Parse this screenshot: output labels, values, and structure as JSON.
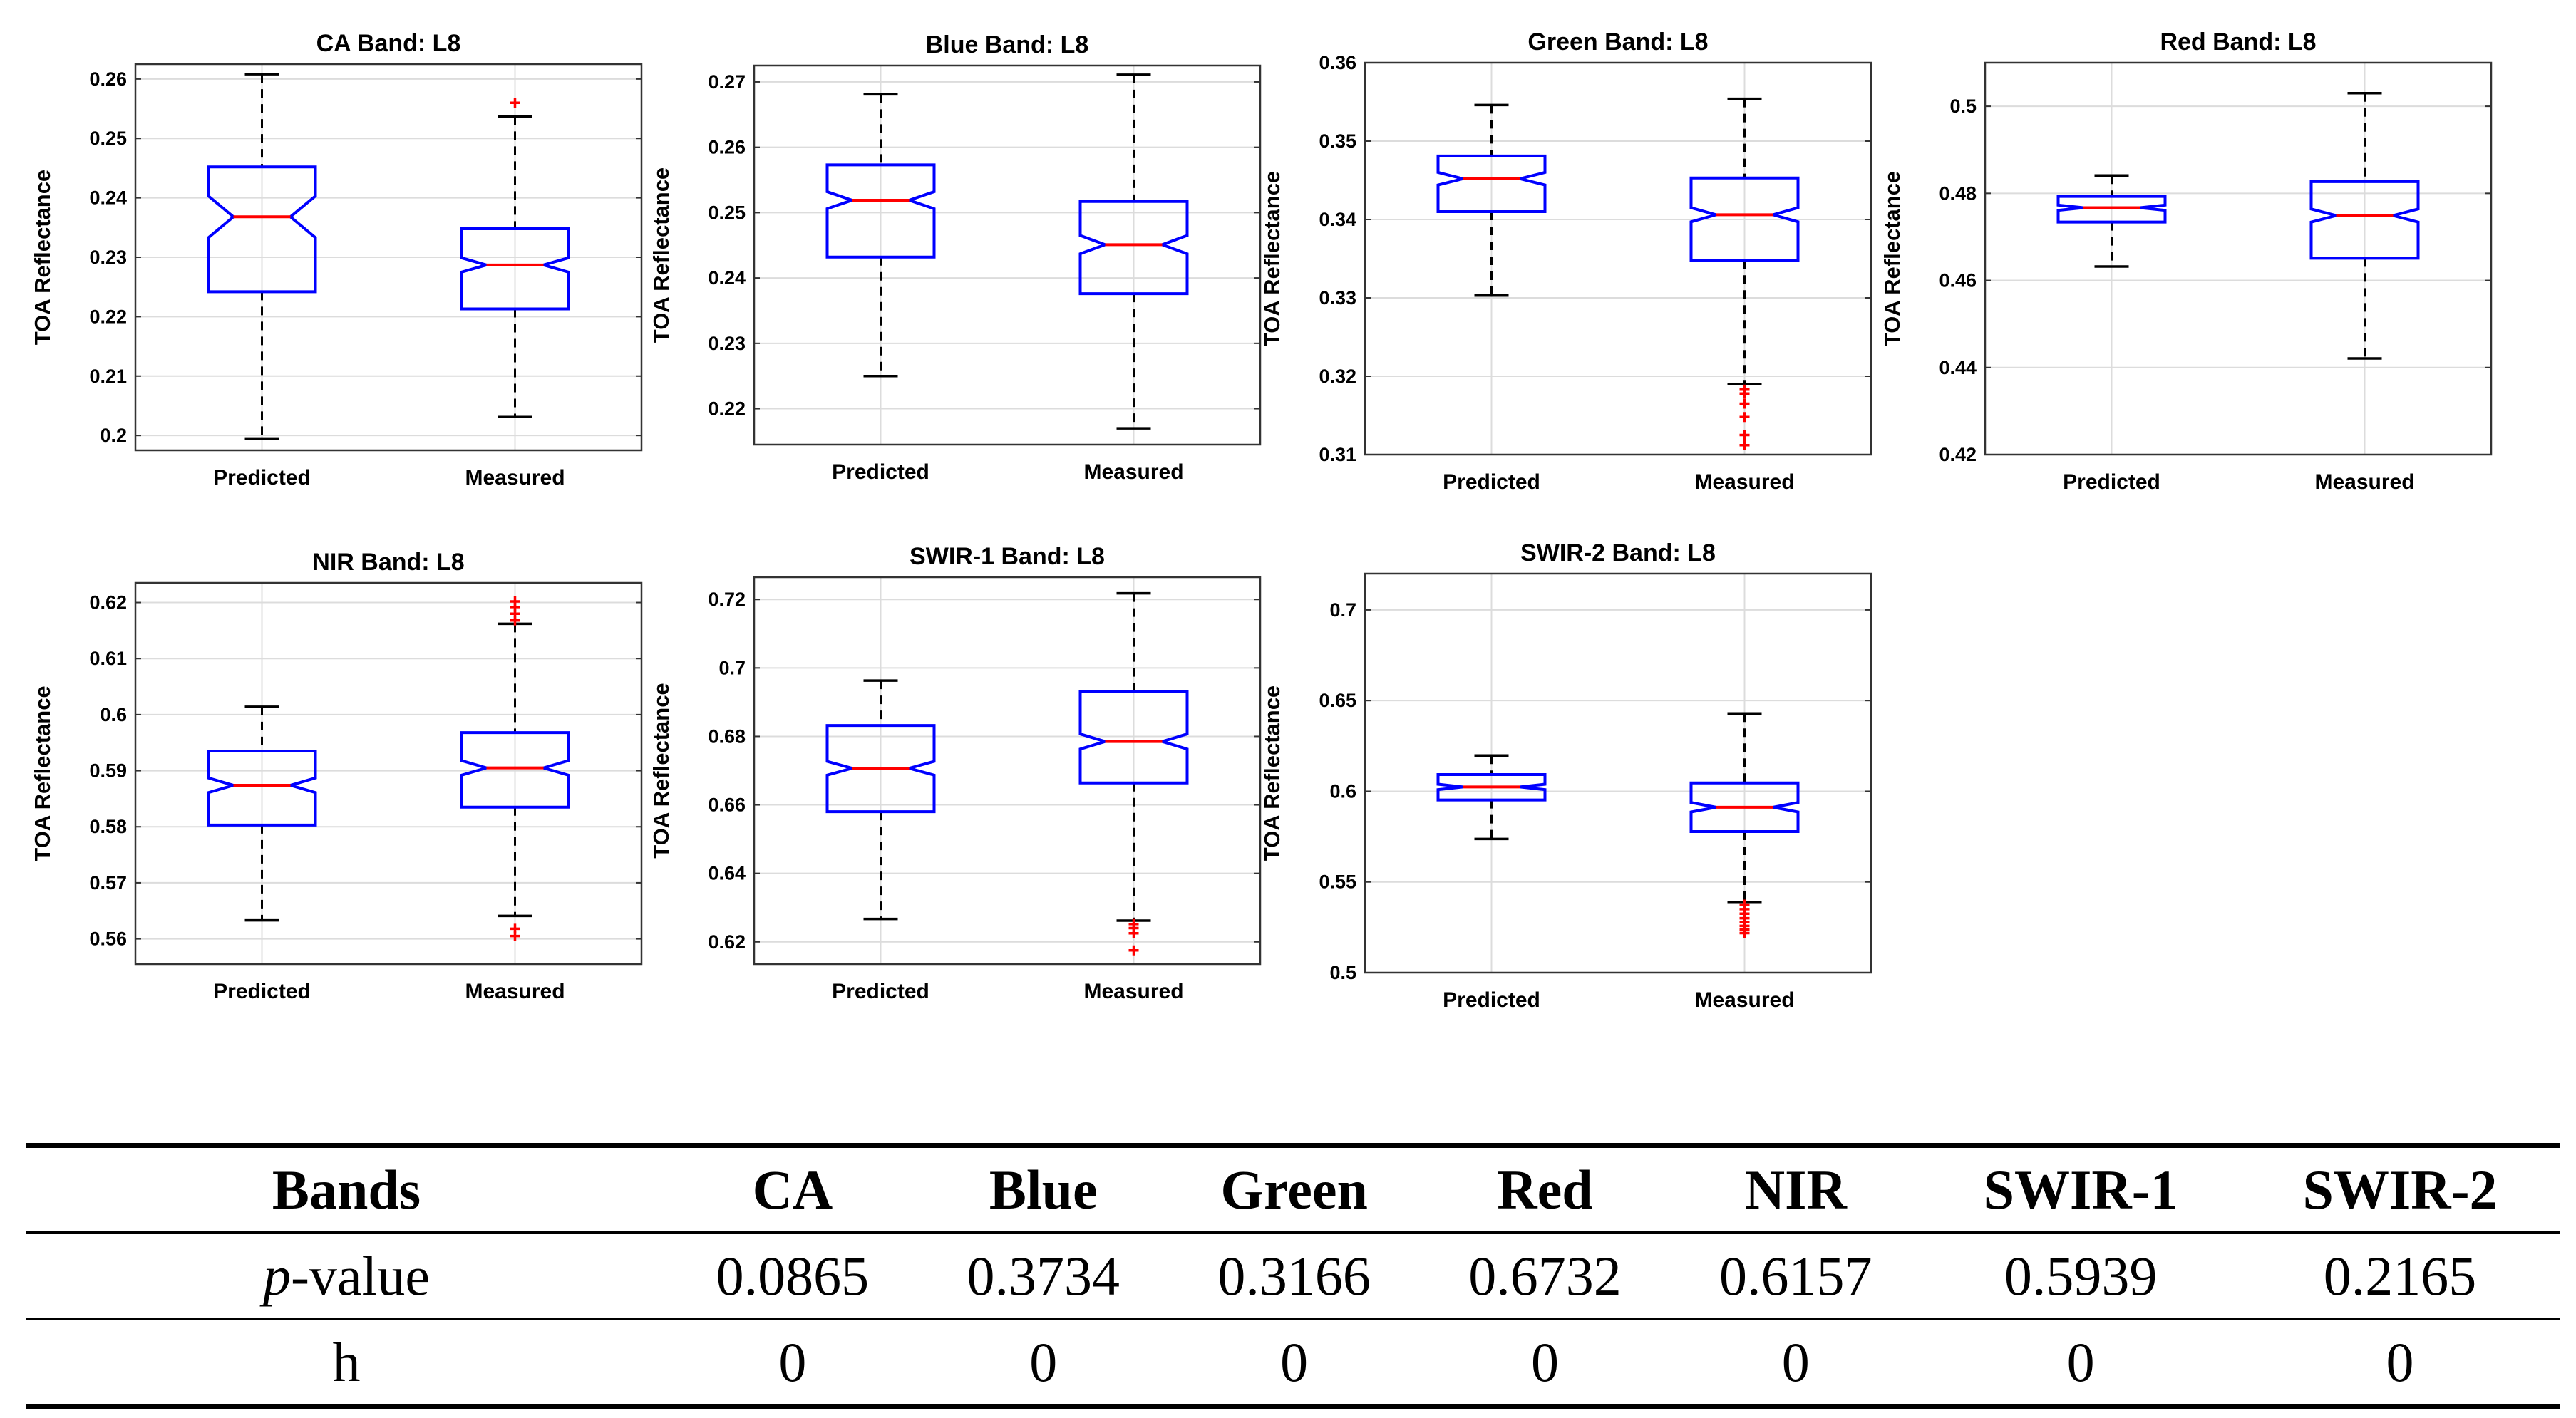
{
  "chart_data": [
    {
      "type": "boxplot",
      "title": "CA Band: L8",
      "ylabel": "TOA Reflectance",
      "categories": [
        "Predicted",
        "Measured"
      ],
      "ylim": [
        0.1975,
        0.2625
      ],
      "yticks": [
        "0.2",
        "0.21",
        "0.22",
        "0.23",
        "0.24",
        "0.25",
        "0.26"
      ],
      "series": [
        {
          "name": "Predicted",
          "whisker_low": 0.1995,
          "q1": 0.2242,
          "median": 0.2368,
          "q3": 0.2452,
          "whisker_high": 0.2608,
          "notch": 0.0035,
          "outliers": []
        },
        {
          "name": "Measured",
          "whisker_low": 0.2031,
          "q1": 0.2213,
          "median": 0.2287,
          "q3": 0.2348,
          "whisker_high": 0.2537,
          "notch": 0.0012,
          "outliers": [
            0.256
          ]
        }
      ]
    },
    {
      "type": "boxplot",
      "title": "Blue Band: L8",
      "ylabel": "TOA Reflectance",
      "categories": [
        "Predicted",
        "Measured"
      ],
      "ylim": [
        0.2145,
        0.2725
      ],
      "yticks": [
        "0.22",
        "0.23",
        "0.24",
        "0.25",
        "0.26",
        "0.27"
      ],
      "series": [
        {
          "name": "Predicted",
          "whisker_low": 0.225,
          "q1": 0.2432,
          "median": 0.2519,
          "q3": 0.2573,
          "whisker_high": 0.2681,
          "notch": 0.0013,
          "outliers": []
        },
        {
          "name": "Measured",
          "whisker_low": 0.217,
          "q1": 0.2376,
          "median": 0.2451,
          "q3": 0.2517,
          "whisker_high": 0.2711,
          "notch": 0.0014,
          "outliers": []
        }
      ]
    },
    {
      "type": "boxplot",
      "title": "Green Band: L8",
      "ylabel": "TOA Reflectance",
      "categories": [
        "Predicted",
        "Measured"
      ],
      "ylim": [
        0.31,
        0.36
      ],
      "yticks": [
        "0.31",
        "0.32",
        "0.33",
        "0.34",
        "0.35",
        "0.36"
      ],
      "series": [
        {
          "name": "Predicted",
          "whisker_low": 0.3303,
          "q1": 0.341,
          "median": 0.3452,
          "q3": 0.3481,
          "whisker_high": 0.3546,
          "notch": 0.0008,
          "outliers": []
        },
        {
          "name": "Measured",
          "whisker_low": 0.319,
          "q1": 0.3348,
          "median": 0.3406,
          "q3": 0.3453,
          "whisker_high": 0.3554,
          "notch": 0.0009,
          "outliers": [
            0.3183,
            0.3178,
            0.3165,
            0.3148,
            0.3125,
            0.3112
          ]
        }
      ]
    },
    {
      "type": "boxplot",
      "title": "Red Band: L8",
      "ylabel": "TOA Reflectance",
      "categories": [
        "Predicted",
        "Measured"
      ],
      "ylim": [
        0.42,
        0.51
      ],
      "yticks": [
        "0.42",
        "0.44",
        "0.46",
        "0.48",
        "0.5"
      ],
      "series": [
        {
          "name": "Predicted",
          "whisker_low": 0.4632,
          "q1": 0.4734,
          "median": 0.4767,
          "q3": 0.4793,
          "whisker_high": 0.4841,
          "notch": 0.0006,
          "outliers": []
        },
        {
          "name": "Measured",
          "whisker_low": 0.4421,
          "q1": 0.4651,
          "median": 0.4749,
          "q3": 0.4827,
          "whisker_high": 0.503,
          "notch": 0.0015,
          "outliers": []
        }
      ]
    },
    {
      "type": "boxplot",
      "title": "NIR Band: L8",
      "ylabel": "TOA Reflectance",
      "categories": [
        "Predicted",
        "Measured"
      ],
      "ylim": [
        0.5555,
        0.6235
      ],
      "yticks": [
        "0.56",
        "0.57",
        "0.58",
        "0.59",
        "0.6",
        "0.61",
        "0.62"
      ],
      "series": [
        {
          "name": "Predicted",
          "whisker_low": 0.5633,
          "q1": 0.5803,
          "median": 0.5874,
          "q3": 0.5935,
          "whisker_high": 0.6014,
          "notch": 0.0013,
          "outliers": []
        },
        {
          "name": "Measured",
          "whisker_low": 0.5641,
          "q1": 0.5835,
          "median": 0.5905,
          "q3": 0.5968,
          "whisker_high": 0.6162,
          "notch": 0.0013,
          "outliers": [
            0.5605,
            0.5618,
            0.6168,
            0.618,
            0.6192,
            0.6202
          ]
        }
      ]
    },
    {
      "type": "boxplot",
      "title": "SWIR-1 Band: L8",
      "ylabel": "TOA Reflectance",
      "categories": [
        "Predicted",
        "Measured"
      ],
      "ylim": [
        0.6135,
        0.7265
      ],
      "yticks": [
        "0.62",
        "0.64",
        "0.66",
        "0.68",
        "0.7",
        "0.72"
      ],
      "series": [
        {
          "name": "Predicted",
          "whisker_low": 0.6267,
          "q1": 0.658,
          "median": 0.6707,
          "q3": 0.6832,
          "whisker_high": 0.6963,
          "notch": 0.002,
          "outliers": []
        },
        {
          "name": "Measured",
          "whisker_low": 0.6262,
          "q1": 0.6664,
          "median": 0.6785,
          "q3": 0.6932,
          "whisker_high": 0.7218,
          "notch": 0.0022,
          "outliers": [
            0.6175,
            0.6225,
            0.624,
            0.6252
          ]
        }
      ]
    },
    {
      "type": "boxplot",
      "title": "SWIR-2 Band: L8",
      "ylabel": "TOA Reflectance",
      "categories": [
        "Predicted",
        "Measured"
      ],
      "ylim": [
        0.5,
        0.72
      ],
      "yticks": [
        "0.5",
        "0.55",
        "0.6",
        "0.65",
        "0.7"
      ],
      "series": [
        {
          "name": "Predicted",
          "whisker_low": 0.5737,
          "q1": 0.5952,
          "median": 0.6024,
          "q3": 0.6092,
          "whisker_high": 0.6197,
          "notch": 0.0015,
          "outliers": []
        },
        {
          "name": "Measured",
          "whisker_low": 0.539,
          "q1": 0.5778,
          "median": 0.5912,
          "q3": 0.6046,
          "whisker_high": 0.6429,
          "notch": 0.0026,
          "outliers": [
            0.5218,
            0.5238,
            0.5258,
            0.5278,
            0.53,
            0.5325,
            0.535,
            0.5375
          ]
        }
      ]
    }
  ],
  "table": {
    "header_label": "Bands",
    "columns": [
      "CA",
      "Blue",
      "Green",
      "Red",
      "NIR",
      "SWIR-1",
      "SWIR-2"
    ],
    "p_label_italic": "p",
    "p_label_rest": "-value",
    "p_values": [
      "0.0865",
      "0.3734",
      "0.3166",
      "0.6732",
      "0.6157",
      "0.5939",
      "0.2165"
    ],
    "h_label": "h",
    "h_values": [
      "0",
      "0",
      "0",
      "0",
      "0",
      "0",
      "0"
    ]
  },
  "colors": {
    "box": "#0000ff",
    "median": "#ff0000",
    "outlier": "#ff0000",
    "whisker": "#000000",
    "grid": "#dcdcdc"
  }
}
